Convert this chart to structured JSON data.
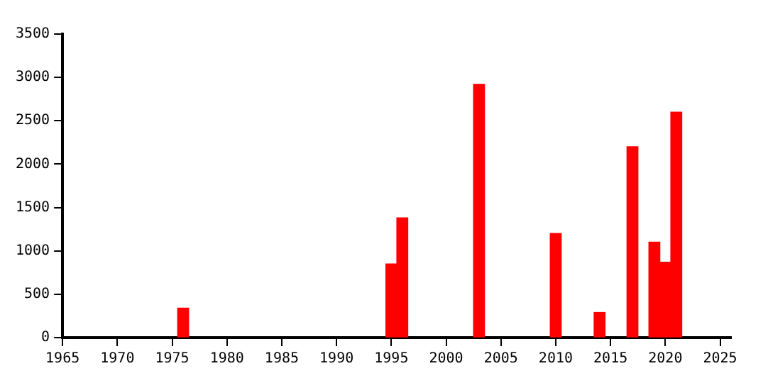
{
  "chart_data": {
    "type": "bar",
    "x": [
      1976,
      1995,
      1996,
      2003,
      2010,
      2014,
      2017,
      2019,
      2020,
      2021
    ],
    "values": [
      340,
      850,
      1380,
      2920,
      1200,
      290,
      2200,
      1100,
      870,
      2600
    ],
    "color": "#ff0000",
    "xlim": [
      1965,
      2026
    ],
    "xticks": [
      1965,
      1970,
      1975,
      1980,
      1985,
      1990,
      1995,
      2000,
      2005,
      2010,
      2015,
      2020,
      2025
    ],
    "ylim": [
      0,
      3500
    ],
    "yticks": [
      0,
      500,
      1000,
      1500,
      2000,
      2500,
      3000,
      3500
    ],
    "grid": false,
    "legend": false
  }
}
